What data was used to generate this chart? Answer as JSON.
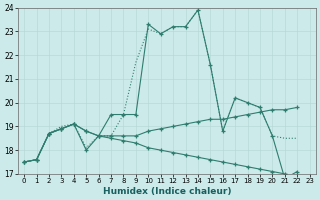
{
  "xlabel": "Humidex (Indice chaleur)",
  "bg_color": "#cceaea",
  "line_color": "#2e7d6e",
  "grid_color": "#b8d8d8",
  "xlim": [
    -0.5,
    23.5
  ],
  "ylim": [
    17,
    24
  ],
  "yticks": [
    17,
    18,
    19,
    20,
    21,
    22,
    23,
    24
  ],
  "xticks": [
    0,
    1,
    2,
    3,
    4,
    5,
    6,
    7,
    8,
    9,
    10,
    11,
    12,
    13,
    14,
    15,
    16,
    17,
    18,
    19,
    20,
    21,
    22,
    23
  ],
  "series": [
    {
      "x": [
        0,
        1,
        2,
        3,
        4,
        5,
        6,
        7,
        8,
        9,
        10,
        11,
        12,
        13,
        14,
        15,
        16,
        17,
        18,
        19,
        20,
        21,
        22
      ],
      "y": [
        17.5,
        17.6,
        18.7,
        18.9,
        19.1,
        18.0,
        18.6,
        19.5,
        19.5,
        19.5,
        23.3,
        22.9,
        23.2,
        23.2,
        23.9,
        21.6,
        18.8,
        20.2,
        20.0,
        19.8,
        18.6,
        16.8,
        17.1
      ],
      "linestyle": "-",
      "marker": true
    },
    {
      "x": [
        0,
        1,
        2,
        3,
        4,
        5,
        6,
        7,
        8,
        9,
        10,
        11,
        12,
        13,
        14,
        15,
        16,
        17,
        18,
        19,
        20,
        21,
        22
      ],
      "y": [
        17.5,
        17.6,
        18.7,
        18.9,
        19.1,
        18.8,
        18.6,
        18.6,
        18.6,
        18.6,
        18.8,
        18.9,
        19.0,
        19.1,
        19.2,
        19.3,
        19.3,
        19.4,
        19.5,
        19.6,
        19.7,
        19.7,
        19.8
      ],
      "linestyle": "-",
      "marker": true
    },
    {
      "x": [
        0,
        1,
        2,
        3,
        4,
        5,
        6,
        7,
        8,
        9,
        10,
        11,
        12,
        13,
        14,
        15,
        16,
        17,
        18,
        19,
        20,
        21,
        22
      ],
      "y": [
        17.5,
        17.6,
        18.7,
        18.9,
        19.1,
        18.8,
        18.6,
        18.5,
        18.4,
        18.3,
        18.1,
        18.0,
        17.9,
        17.8,
        17.7,
        17.6,
        17.5,
        17.4,
        17.3,
        17.2,
        17.1,
        17.0,
        16.9
      ],
      "linestyle": "-",
      "marker": true
    },
    {
      "x": [
        0,
        1,
        2,
        3,
        4,
        5,
        6,
        7,
        8,
        9,
        10,
        11,
        12,
        13,
        14,
        15,
        16,
        17,
        18,
        19,
        20,
        21,
        22
      ],
      "y": [
        17.5,
        17.6,
        18.7,
        19.0,
        19.1,
        18.1,
        18.6,
        18.6,
        19.5,
        21.7,
        23.1,
        22.9,
        23.2,
        23.2,
        23.9,
        21.6,
        18.8,
        20.2,
        20.0,
        19.8,
        18.6,
        18.5,
        18.5
      ],
      "linestyle": ":",
      "marker": false
    }
  ]
}
